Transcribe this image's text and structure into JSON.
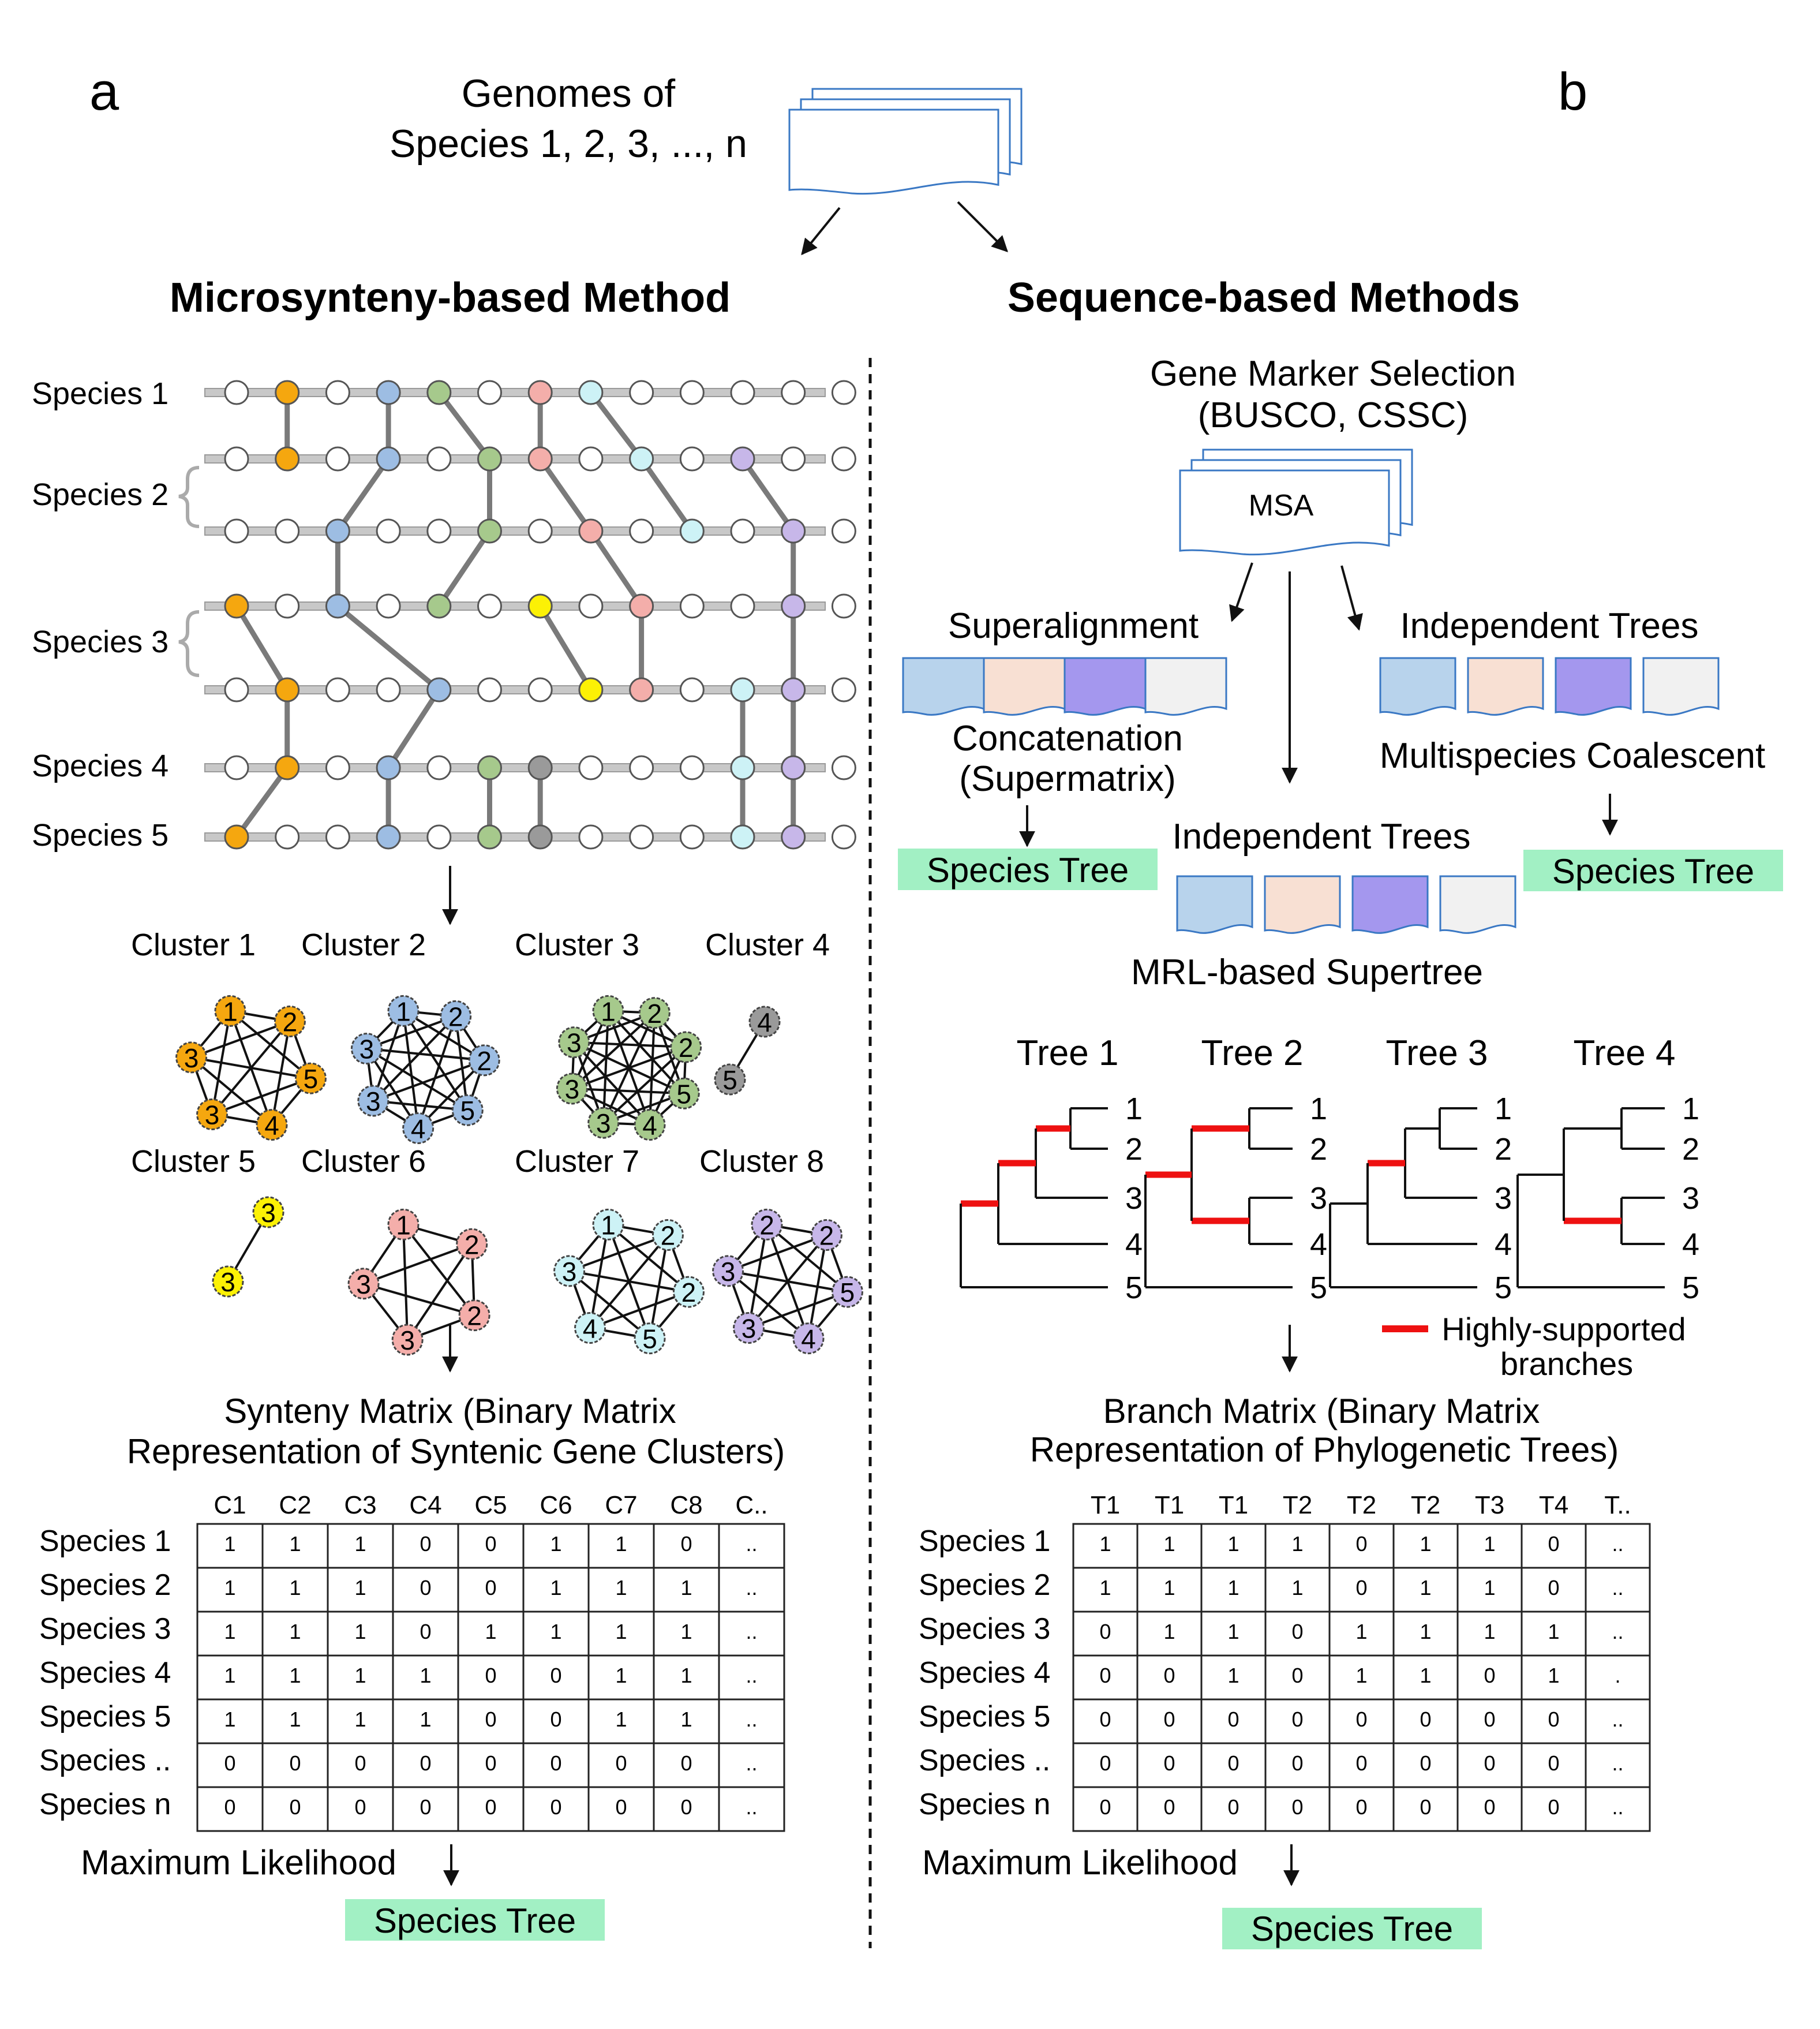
{
  "colors": {
    "gene_default": "#ffffff",
    "orange": "#f5a70f",
    "blue": "#9dbde3",
    "green": "#a6c98c",
    "pink": "#f4aeaa",
    "cyan": "#cdf2f6",
    "purple": "#c7b7e9",
    "gray": "#9a9a9a",
    "yellow": "#fcf105",
    "species_tree_bg": "#a2f0c4",
    "highlight_branch": "#ee1111",
    "doc_light_blue": "#b8d3ec",
    "doc_peach": "#f8e0d3",
    "doc_lavender": "#a497ee",
    "doc_light_gray": "#f1f1f1"
  },
  "panel_a": {
    "letter": "a",
    "genomes_line1": "Genomes of",
    "genomes_line2": "Species 1, 2, 3, ..., n",
    "title": "Microsynteny-based Method",
    "species_labels": [
      "Species 1",
      "Species 2",
      "Species 3",
      "Species 4",
      "Species 5"
    ],
    "chromosomes": [
      [
        "",
        "orange",
        "",
        "blue",
        "green",
        "",
        "pink",
        "cyan",
        "",
        "",
        "",
        "",
        ""
      ],
      [
        "",
        "orange",
        "",
        "blue",
        "",
        "green",
        "pink",
        "",
        "cyan",
        "",
        "purple",
        "",
        ""
      ],
      [
        "",
        "",
        "blue",
        "",
        "",
        "green",
        "",
        "pink",
        "",
        "cyan",
        "",
        "purple",
        ""
      ],
      [
        "orange",
        "",
        "blue",
        "",
        "green",
        "",
        "yellow",
        "",
        "pink",
        "",
        "",
        "purple",
        ""
      ],
      [
        "",
        "orange",
        "",
        "",
        "blue",
        "",
        "",
        "yellow",
        "pink",
        "",
        "cyan",
        "purple",
        ""
      ],
      [
        "",
        "orange",
        "",
        "blue",
        "",
        "green",
        "gray",
        "",
        "",
        "",
        "cyan",
        "purple",
        ""
      ],
      [
        "orange",
        "",
        "",
        "blue",
        "",
        "green",
        "gray",
        "",
        "",
        "",
        "cyan",
        "purple",
        ""
      ]
    ],
    "clusters": [
      {
        "label": "Cluster 1",
        "color": "orange",
        "nodes": [
          "1",
          "2",
          "5",
          "4",
          "3",
          "3"
        ]
      },
      {
        "label": "Cluster 2",
        "color": "blue",
        "nodes": [
          "1",
          "2",
          "2",
          "5",
          "4",
          "3",
          "3"
        ]
      },
      {
        "label": "Cluster 3",
        "color": "green",
        "nodes": [
          "1",
          "2",
          "2",
          "5",
          "4",
          "3",
          "3",
          "3"
        ]
      },
      {
        "label": "Cluster 4",
        "color": "gray",
        "nodes": [
          "4",
          "5"
        ]
      },
      {
        "label": "Cluster 5",
        "color": "yellow",
        "nodes": [
          "3",
          "3"
        ]
      },
      {
        "label": "Cluster 6",
        "color": "pink",
        "nodes": [
          "1",
          "2",
          "2",
          "3",
          "3"
        ]
      },
      {
        "label": "Cluster 7",
        "color": "cyan",
        "nodes": [
          "1",
          "2",
          "2",
          "5",
          "4",
          "3"
        ]
      },
      {
        "label": "Cluster 8",
        "color": "purple",
        "nodes": [
          "2",
          "2",
          "5",
          "4",
          "3",
          "3"
        ]
      }
    ],
    "matrix_title_line1": "Synteny Matrix (Binary Matrix",
    "matrix_title_line2": "Representation of Syntenic Gene Clusters)",
    "matrix_columns": [
      "C1",
      "C2",
      "C3",
      "C4",
      "C5",
      "C6",
      "C7",
      "C8",
      "C.."
    ],
    "matrix_rows": [
      {
        "label": "Species 1",
        "cells": [
          "1",
          "1",
          "1",
          "0",
          "0",
          "1",
          "1",
          "0",
          ".."
        ]
      },
      {
        "label": "Species 2",
        "cells": [
          "1",
          "1",
          "1",
          "0",
          "0",
          "1",
          "1",
          "1",
          ".."
        ]
      },
      {
        "label": "Species 3",
        "cells": [
          "1",
          "1",
          "1",
          "0",
          "1",
          "1",
          "1",
          "1",
          ".."
        ]
      },
      {
        "label": "Species 4",
        "cells": [
          "1",
          "1",
          "1",
          "1",
          "0",
          "0",
          "1",
          "1",
          ".."
        ]
      },
      {
        "label": "Species 5",
        "cells": [
          "1",
          "1",
          "1",
          "1",
          "0",
          "0",
          "1",
          "1",
          ".."
        ]
      },
      {
        "label": "Species ..",
        "cells": [
          "0",
          "0",
          "0",
          "0",
          "0",
          "0",
          "0",
          "0",
          ".."
        ]
      },
      {
        "label": "Species n",
        "cells": [
          "0",
          "0",
          "0",
          "0",
          "0",
          "0",
          "0",
          "0",
          ".."
        ]
      }
    ],
    "ml_label": "Maximum Likelihood",
    "species_tree_label": "Species Tree"
  },
  "panel_b": {
    "letter": "b",
    "title": "Sequence-based Methods",
    "marker_line1": "Gene Marker Selection",
    "marker_line2": "(BUSCO, CSSC)",
    "msa_label": "MSA",
    "superalignment_label": "Superalignment",
    "concatenation_line1": "Concatenation",
    "concatenation_line2": "(Supermatrix)",
    "independent_trees_right": "Independent Trees",
    "multispecies_label": "Multispecies Coalescent",
    "independent_trees_mid": "Independent Trees",
    "mrl_label": "MRL-based Supertree",
    "species_tree_left": "Species Tree",
    "species_tree_right": "Species Tree",
    "trees": [
      "Tree 1",
      "Tree 2",
      "Tree 3",
      "Tree 4"
    ],
    "leaf_labels": [
      "1",
      "2",
      "3",
      "4",
      "5"
    ],
    "legend_line1": "Highly-supported",
    "legend_line2": "branches",
    "matrix_title_line1": "Branch Matrix (Binary Matrix",
    "matrix_title_line2": "Representation of Phylogenetic Trees)",
    "matrix_columns": [
      "T1",
      "T1",
      "T1",
      "T2",
      "T2",
      "T2",
      "T3",
      "T4",
      "T.."
    ],
    "matrix_rows": [
      {
        "label": "Species 1",
        "cells": [
          "1",
          "1",
          "1",
          "1",
          "0",
          "1",
          "1",
          "0",
          ".."
        ]
      },
      {
        "label": "Species 2",
        "cells": [
          "1",
          "1",
          "1",
          "1",
          "0",
          "1",
          "1",
          "0",
          ".."
        ]
      },
      {
        "label": "Species 3",
        "cells": [
          "0",
          "1",
          "1",
          "0",
          "1",
          "1",
          "1",
          "1",
          ".."
        ]
      },
      {
        "label": "Species 4",
        "cells": [
          "0",
          "0",
          "1",
          "0",
          "1",
          "1",
          "0",
          "1",
          "."
        ]
      },
      {
        "label": "Species 5",
        "cells": [
          "0",
          "0",
          "0",
          "0",
          "0",
          "0",
          "0",
          "0",
          ".."
        ]
      },
      {
        "label": "Species ..",
        "cells": [
          "0",
          "0",
          "0",
          "0",
          "0",
          "0",
          "0",
          "0",
          ".."
        ]
      },
      {
        "label": "Species n",
        "cells": [
          "0",
          "0",
          "0",
          "0",
          "0",
          "0",
          "0",
          "0",
          ".."
        ]
      }
    ],
    "ml_label": "Maximum Likelihood",
    "species_tree_bottom": "Species Tree"
  }
}
